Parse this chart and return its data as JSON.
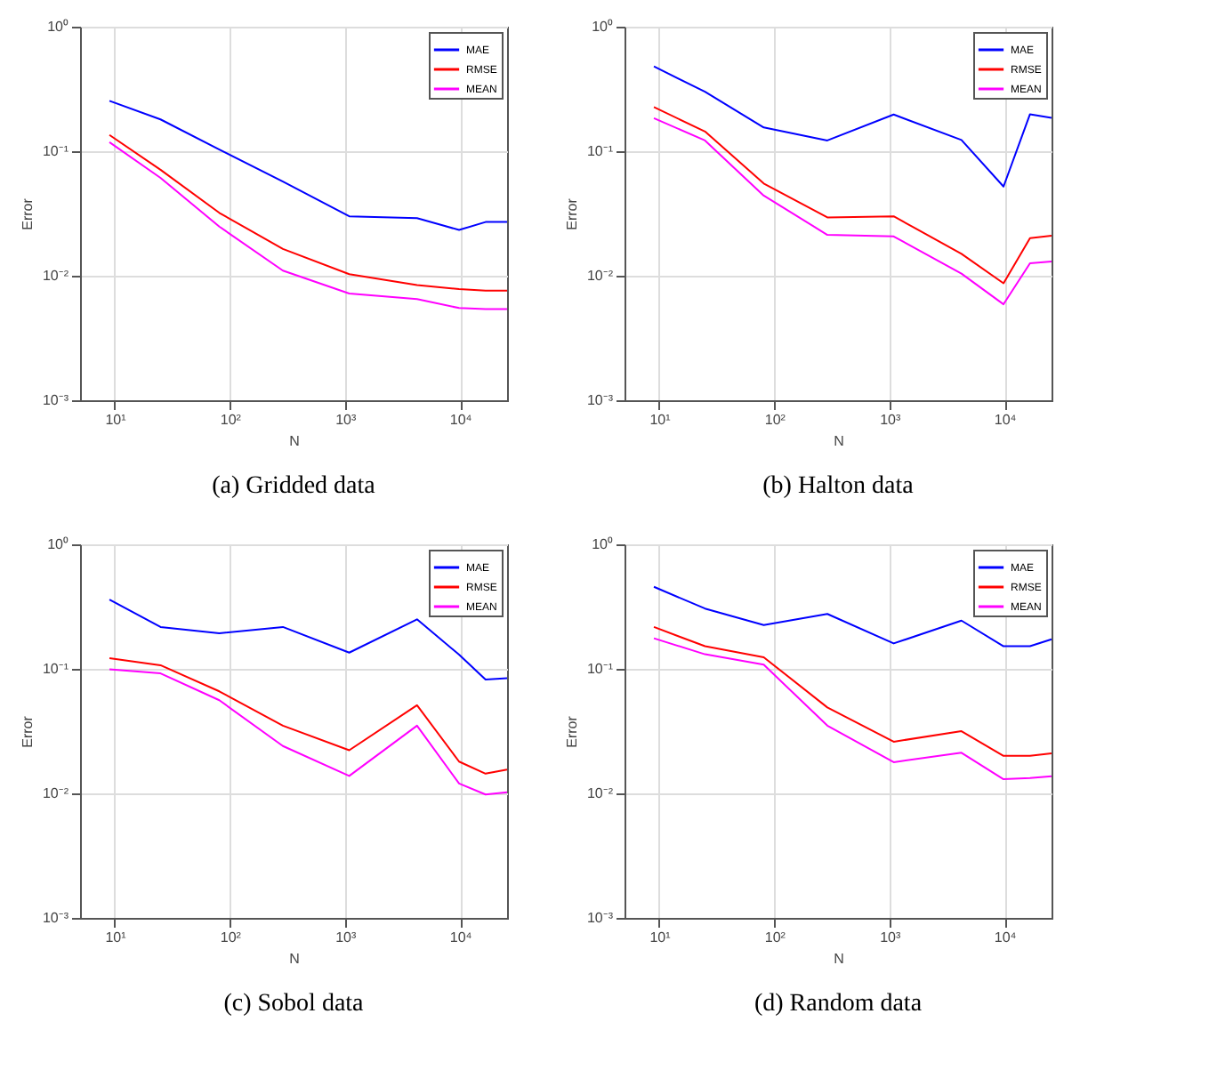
{
  "chart_data": [
    {
      "type": "line",
      "title": "(a) Gridded data",
      "xlabel": "N",
      "ylabel": "Error",
      "log": "xy",
      "grid": true,
      "legend": "top right",
      "marker": "none",
      "line_style": "solid",
      "x": [
        9,
        25,
        81,
        289,
        1089,
        4225,
        9801,
        16641,
        25600
      ],
      "xlim": [
        5,
        25600
      ],
      "xticks": [
        {
          "value": 10,
          "label": "10¹"
        },
        {
          "value": 100,
          "label": "10²"
        },
        {
          "value": 1000,
          "label": "10³"
        },
        {
          "value": 10000,
          "label": "10⁴"
        }
      ],
      "ylim": [
        0.001,
        1
      ],
      "yticks": [
        {
          "value": 0.001,
          "label": "10⁻³"
        },
        {
          "value": 0.01,
          "label": "10⁻²"
        },
        {
          "value": 0.1,
          "label": "10⁻¹"
        },
        {
          "value": 1,
          "label": "10⁰"
        }
      ],
      "series": [
        {
          "name": "MAE",
          "color": "#0000ff",
          "values": [
            0.254,
            0.18,
            0.103,
            0.057,
            0.03,
            0.029,
            0.0233,
            0.027,
            0.027
          ]
        },
        {
          "name": "RMSE",
          "color": "#ff0000",
          "values": [
            0.135,
            0.071,
            0.032,
            0.0164,
            0.0103,
            0.0084,
            0.0078,
            0.0076,
            0.0076
          ]
        },
        {
          "name": "MEAN",
          "color": "#ff00ff",
          "values": [
            0.118,
            0.061,
            0.0248,
            0.011,
            0.0072,
            0.0065,
            0.0055,
            0.0054,
            0.0054
          ]
        }
      ]
    },
    {
      "type": "line",
      "title": "(b) Halton data",
      "xlabel": "N",
      "ylabel": "Error",
      "log": "xy",
      "grid": true,
      "legend": "top right",
      "marker": "none",
      "line_style": "solid",
      "x": [
        9,
        25,
        81,
        289,
        1089,
        4225,
        9801,
        16641,
        25600
      ],
      "xlim": [
        5,
        25600
      ],
      "xticks": [
        {
          "value": 10,
          "label": "10¹"
        },
        {
          "value": 100,
          "label": "10²"
        },
        {
          "value": 1000,
          "label": "10³"
        },
        {
          "value": 10000,
          "label": "10⁴"
        }
      ],
      "ylim": [
        0.001,
        1
      ],
      "yticks": [
        {
          "value": 0.001,
          "label": "10⁻³"
        },
        {
          "value": 0.01,
          "label": "10⁻²"
        },
        {
          "value": 0.1,
          "label": "10⁻¹"
        },
        {
          "value": 1,
          "label": "10⁰"
        }
      ],
      "series": [
        {
          "name": "MAE",
          "color": "#0000ff",
          "values": [
            0.48,
            0.3,
            0.155,
            0.122,
            0.197,
            0.123,
            0.052,
            0.198,
            0.185
          ]
        },
        {
          "name": "RMSE",
          "color": "#ff0000",
          "values": [
            0.226,
            0.144,
            0.055,
            0.0294,
            0.03,
            0.015,
            0.0087,
            0.02,
            0.021
          ]
        },
        {
          "name": "MEAN",
          "color": "#ff00ff",
          "values": [
            0.184,
            0.122,
            0.044,
            0.0213,
            0.0207,
            0.0104,
            0.0059,
            0.0126,
            0.013
          ]
        }
      ]
    },
    {
      "type": "line",
      "title": "(c) Sobol data",
      "xlabel": "N",
      "ylabel": "Error",
      "log": "xy",
      "grid": true,
      "legend": "top right",
      "marker": "none",
      "line_style": "solid",
      "x": [
        9,
        25,
        81,
        289,
        1089,
        4225,
        9801,
        16641,
        25600
      ],
      "xlim": [
        5,
        25600
      ],
      "xticks": [
        {
          "value": 10,
          "label": "10¹"
        },
        {
          "value": 100,
          "label": "10²"
        },
        {
          "value": 1000,
          "label": "10³"
        },
        {
          "value": 10000,
          "label": "10⁴"
        }
      ],
      "ylim": [
        0.001,
        1
      ],
      "yticks": [
        {
          "value": 0.001,
          "label": "10⁻³"
        },
        {
          "value": 0.01,
          "label": "10⁻²"
        },
        {
          "value": 0.1,
          "label": "10⁻¹"
        },
        {
          "value": 1,
          "label": "10⁰"
        }
      ],
      "series": [
        {
          "name": "MAE",
          "color": "#0000ff",
          "values": [
            0.36,
            0.217,
            0.193,
            0.217,
            0.135,
            0.25,
            0.13,
            0.082,
            0.084
          ]
        },
        {
          "name": "RMSE",
          "color": "#ff0000",
          "values": [
            0.122,
            0.107,
            0.066,
            0.035,
            0.0222,
            0.051,
            0.018,
            0.0144,
            0.0155
          ]
        },
        {
          "name": "MEAN",
          "color": "#ff00ff",
          "values": [
            0.099,
            0.092,
            0.056,
            0.024,
            0.0138,
            0.035,
            0.012,
            0.0098,
            0.0102
          ]
        }
      ]
    },
    {
      "type": "line",
      "title": "(d) Random data",
      "xlabel": "N",
      "ylabel": "Error",
      "log": "xy",
      "grid": true,
      "legend": "top right",
      "marker": "none",
      "line_style": "solid",
      "x": [
        9,
        25,
        81,
        289,
        1089,
        4225,
        9801,
        16641,
        25600
      ],
      "xlim": [
        5,
        25600
      ],
      "xticks": [
        {
          "value": 10,
          "label": "10¹"
        },
        {
          "value": 100,
          "label": "10²"
        },
        {
          "value": 1000,
          "label": "10³"
        },
        {
          "value": 10000,
          "label": "10⁴"
        }
      ],
      "ylim": [
        0.001,
        1
      ],
      "yticks": [
        {
          "value": 0.001,
          "label": "10⁻³"
        },
        {
          "value": 0.01,
          "label": "10⁻²"
        },
        {
          "value": 0.1,
          "label": "10⁻¹"
        },
        {
          "value": 1,
          "label": "10⁰"
        }
      ],
      "series": [
        {
          "name": "MAE",
          "color": "#0000ff",
          "values": [
            0.456,
            0.305,
            0.225,
            0.276,
            0.16,
            0.244,
            0.152,
            0.152,
            0.173
          ]
        },
        {
          "name": "RMSE",
          "color": "#ff0000",
          "values": [
            0.217,
            0.152,
            0.124,
            0.049,
            0.026,
            0.0316,
            0.02,
            0.02,
            0.021
          ]
        },
        {
          "name": "MEAN",
          "color": "#ff00ff",
          "values": [
            0.176,
            0.131,
            0.108,
            0.035,
            0.0178,
            0.0212,
            0.013,
            0.0133,
            0.0137
          ]
        }
      ]
    }
  ]
}
